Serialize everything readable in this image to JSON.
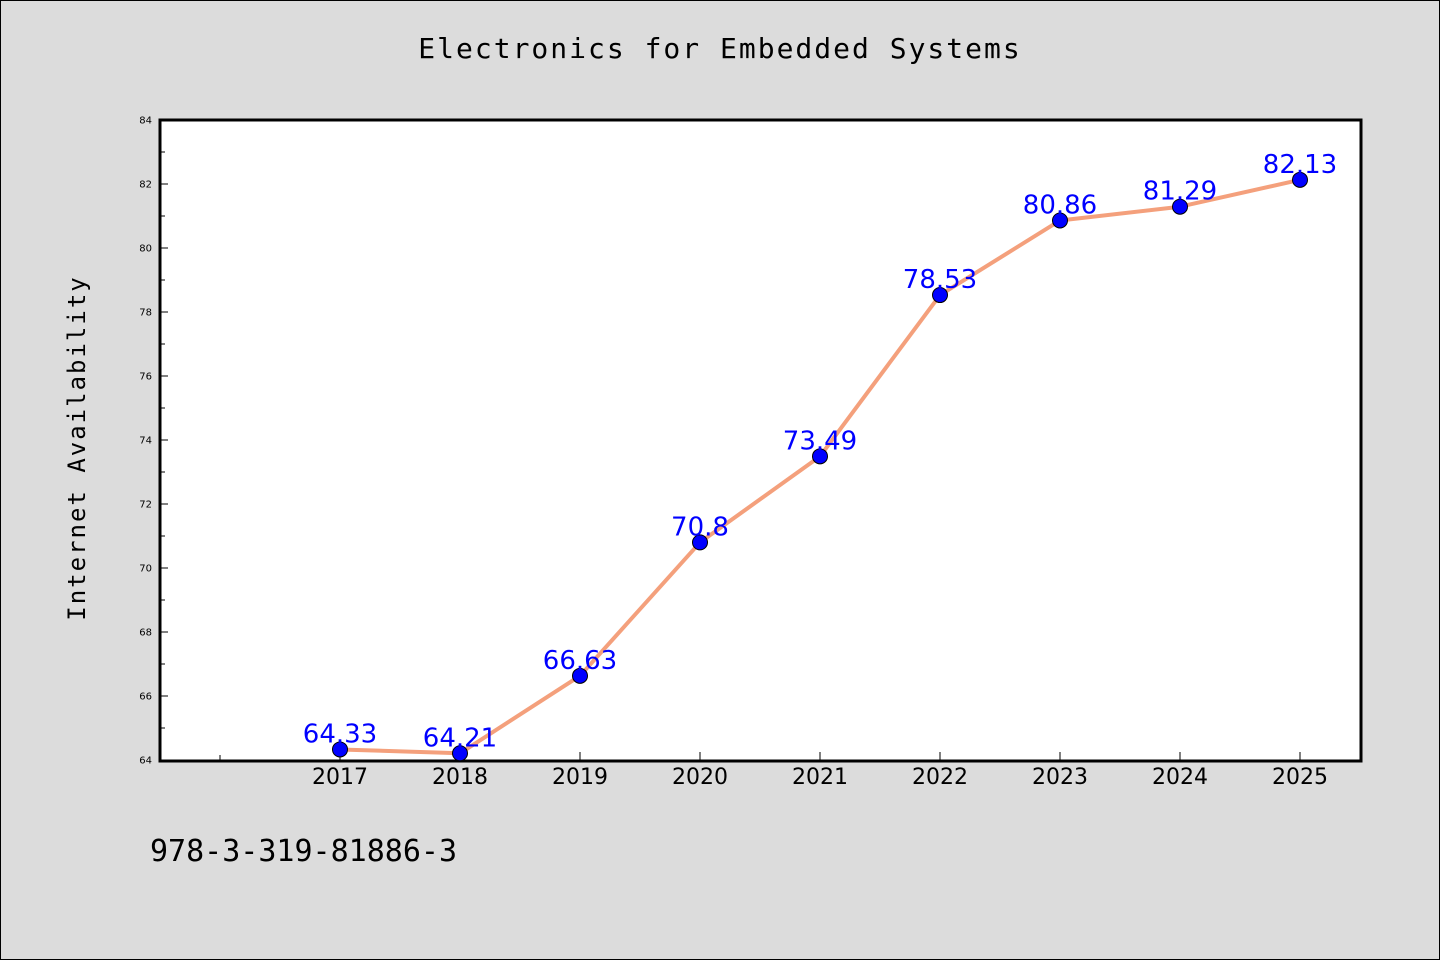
{
  "chart_data": {
    "type": "line",
    "title": "Electronics for Embedded Systems",
    "xlabel": "",
    "ylabel": "Internet Availability",
    "categories": [
      "2017",
      "2018",
      "2019",
      "2020",
      "2021",
      "2022",
      "2023",
      "2024",
      "2025"
    ],
    "series": [
      {
        "values": [
          64.33,
          64.21,
          66.63,
          70.8,
          73.49,
          78.53,
          80.86,
          81.29,
          82.13
        ],
        "labels": [
          "64.33",
          "64.21",
          "66.63",
          "70.8",
          "73.49",
          "78.53",
          "80.86",
          "81.29",
          "82.13"
        ],
        "line_color": "#f4a07c",
        "marker_color": "#0000ff"
      }
    ],
    "ylim": [
      64,
      84
    ],
    "yticks": [
      "64",
      "66",
      "68",
      "70",
      "72",
      "74",
      "76",
      "78",
      "80",
      "82",
      "84"
    ],
    "grid": false,
    "legend": "none",
    "label_color": "#0000ff"
  },
  "footer": {
    "isbn": "978-3-319-81886-3"
  }
}
